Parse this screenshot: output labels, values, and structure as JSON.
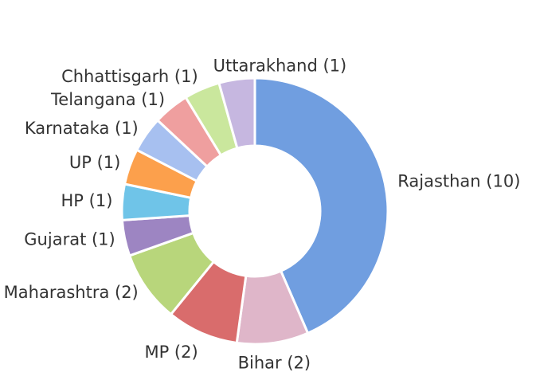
{
  "chart_data": {
    "type": "pie",
    "categories": [
      "Rajasthan (10)",
      "Bihar (2)",
      "MP (2)",
      "Maharashtra (2)",
      "Gujarat (1)",
      "HP (1)",
      "UP (1)",
      "Karnataka (1)",
      "Telangana (1)",
      "Chhattisgarh (1)",
      "Uttarakhand (1)"
    ],
    "values": [
      10,
      2,
      2,
      2,
      1,
      1,
      1,
      1,
      1,
      1,
      1
    ],
    "colors": [
      "#709ee0",
      "#dfb6c9",
      "#d96c6c",
      "#b8d67b",
      "#9d85c2",
      "#6fc4e8",
      "#fca04c",
      "#a7c0f0",
      "#ef9f9f",
      "#cae79d",
      "#c6b7e0"
    ],
    "hole": true
  }
}
